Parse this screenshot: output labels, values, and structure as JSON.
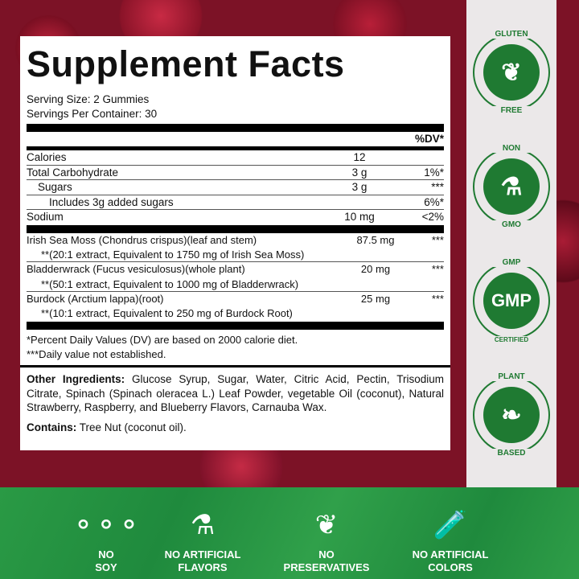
{
  "title": "Supplement Facts",
  "serving_size": "Serving Size: 2 Gummies",
  "servings_per_container": "Servings Per Container: 30",
  "dv_header": "%DV*",
  "nutrients": [
    {
      "name": "Calories",
      "amount": "12",
      "dv": ""
    },
    {
      "name": "Total Carbohydrate",
      "amount": "3 g",
      "dv": "1%*"
    },
    {
      "name": "Sugars",
      "amount": "3 g",
      "dv": "***"
    },
    {
      "name": "Includes 3g added sugars",
      "amount": "",
      "dv": "6%*"
    },
    {
      "name": "Sodium",
      "amount": "10 mg",
      "dv": "<2%"
    }
  ],
  "ingredients": [
    {
      "name": "Irish Sea Moss (Chondrus crispus)(leaf and stem)",
      "amount": "87.5 mg",
      "dv": "***",
      "note": "**(20:1 extract, Equivalent to 1750 mg of Irish Sea Moss)"
    },
    {
      "name": "Bladderwrack (Fucus vesiculosus)(whole plant)",
      "amount": "20 mg",
      "dv": "***",
      "note": "**(50:1 extract, Equivalent to 1000 mg of Bladderwrack)"
    },
    {
      "name": "Burdock (Arctium lappa)(root)",
      "amount": "25 mg",
      "dv": "***",
      "note": "**(10:1 extract, Equivalent to 250 mg of Burdock Root)"
    }
  ],
  "footnotes": [
    "*Percent Daily Values (DV) are based on 2000 calorie diet.",
    "***Daily value not established."
  ],
  "other_label": "Other Ingredients:",
  "other_text": " Glucose Syrup, Sugar, Water, Citric Acid, Pectin, Trisodium Citrate, Spinach (Spinach oleracea L.) Leaf Powder, vegetable Oil (coconut), Natural Strawberry, Raspberry, and Blueberry Flavors, Carnauba Wax.",
  "contains_label": "Contains:",
  "contains_text": " Tree Nut (coconut oil).",
  "badges": [
    {
      "top": "GLUTEN",
      "bottom": "FREE",
      "icon": "wheat-icon"
    },
    {
      "top": "NON",
      "bottom": "GMO",
      "icon": "flask-icon"
    },
    {
      "top": "GMP",
      "bottom": "CERTIFIED",
      "center": "GMP"
    },
    {
      "top": "PLANT",
      "bottom": "BASED",
      "icon": "leaves-icon"
    }
  ],
  "features": [
    {
      "line1": "NO",
      "line2": "SOY",
      "icon": "soybeans-icon"
    },
    {
      "line1": "NO ARTIFICIAL",
      "line2": "FLAVORS",
      "icon": "flask-icon"
    },
    {
      "line1": "NO",
      "line2": "PRESERVATIVES",
      "icon": "leaf-icon"
    },
    {
      "line1": "NO ARTIFICIAL",
      "line2": "COLORS",
      "icon": "dropper-icon"
    }
  ],
  "colors": {
    "brand_green": "#1f7a32",
    "band_green": "#2a9a45"
  }
}
